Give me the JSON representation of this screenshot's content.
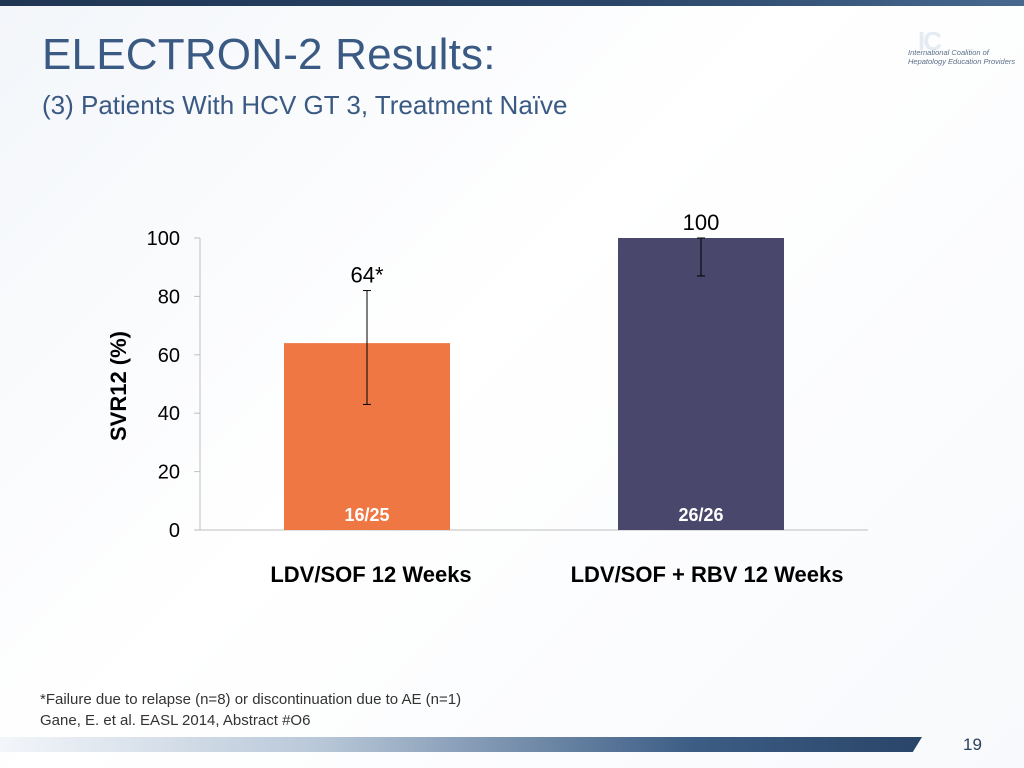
{
  "slide": {
    "title": "ELECTRON-2 Results:",
    "subtitle": "(3) Patients With HCV GT 3, Treatment Naïve",
    "logo_text_line1": "International Coalition of",
    "logo_text_line2": "Hepatology Education Providers",
    "footnote": "*Failure due to relapse (n=8) or discontinuation due to AE (n=1)",
    "citation": "Gane, E. et al. EASL 2014, Abstract #O6",
    "page_number": "19"
  },
  "chart_data": {
    "type": "bar",
    "categories": [
      "LDV/SOF 12 Weeks",
      "LDV/SOF + RBV 12 Weeks"
    ],
    "values": [
      64,
      100
    ],
    "value_labels": [
      "64*",
      "100"
    ],
    "bar_inner_labels": [
      "16/25",
      "26/26"
    ],
    "error_bars": [
      [
        43,
        82
      ],
      [
        87,
        100
      ]
    ],
    "bar_colors": [
      "#ee7744",
      "#4a476c"
    ],
    "ylabel": "SVR12 (%)",
    "xlabel": "",
    "ylim": [
      0,
      100
    ],
    "yticks": [
      0,
      20,
      40,
      60,
      80,
      100
    ],
    "grid": false
  },
  "colors": {
    "title": "#3a5a83",
    "axis": "#bfbfbf",
    "text": "#000000",
    "inner_label": "#ffffff"
  }
}
